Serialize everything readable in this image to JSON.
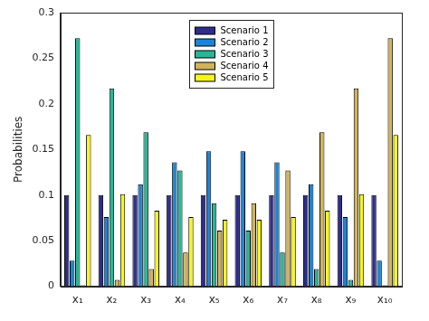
{
  "chart_data": {
    "type": "bar",
    "y_label": "Probabilities",
    "categories": [
      "x₁",
      "x₂",
      "x₃",
      "x₄",
      "x₅",
      "x₆",
      "x₇",
      "x₈",
      "x₉",
      "x₁₀"
    ],
    "series": [
      {
        "name": "Scenario 1",
        "color": "#2e2d8c",
        "values": [
          0.1,
          0.1,
          0.1,
          0.1,
          0.1,
          0.1,
          0.1,
          0.1,
          0.1,
          0.1
        ]
      },
      {
        "name": "Scenario 2",
        "color": "#1a84d8",
        "values": [
          0.028,
          0.076,
          0.112,
          0.136,
          0.148,
          0.148,
          0.136,
          0.112,
          0.076,
          0.028
        ]
      },
      {
        "name": "Scenario 3",
        "color": "#2bb597",
        "values": [
          0.272,
          0.217,
          0.169,
          0.127,
          0.091,
          0.061,
          0.037,
          0.019,
          0.007,
          0.001
        ]
      },
      {
        "name": "Scenario 4",
        "color": "#d1b35b",
        "values": [
          0.001,
          0.007,
          0.019,
          0.037,
          0.061,
          0.091,
          0.127,
          0.169,
          0.217,
          0.272
        ]
      },
      {
        "name": "Scenario 5",
        "color": "#f5f520",
        "values": [
          0.166,
          0.101,
          0.083,
          0.076,
          0.073,
          0.073,
          0.076,
          0.083,
          0.101,
          0.166
        ]
      }
    ],
    "ylim": [
      0,
      0.3
    ],
    "yticks": [
      0,
      0.05,
      0.1,
      0.15,
      0.2,
      0.25,
      0.3
    ],
    "grid": false,
    "legend": "top"
  }
}
